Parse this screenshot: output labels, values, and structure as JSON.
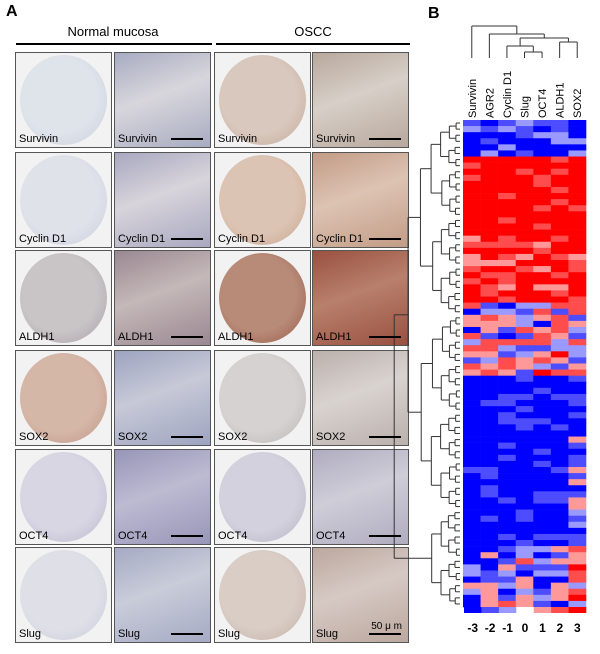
{
  "panel_a": {
    "letter": "A",
    "groups": [
      {
        "label": "Normal mucosa"
      },
      {
        "label": "OSCC"
      }
    ],
    "rows": [
      {
        "marker": "Survivin"
      },
      {
        "marker": "Cyclin D1"
      },
      {
        "marker": "ALDH1"
      },
      {
        "marker": "SOX2"
      },
      {
        "marker": "OCT4"
      },
      {
        "marker": "Slug"
      }
    ],
    "scale_bar": "50 μ m"
  },
  "panel_b": {
    "letter": "B",
    "columns": [
      "Survivin",
      "AGR2",
      "Cyclin D1",
      "Slug",
      "OCT4",
      "ALDH1",
      "SOX2"
    ],
    "color_scale": {
      "ticks": [
        "-3",
        "-2",
        "-1",
        "0",
        "1",
        "2",
        "3"
      ],
      "low_color": "#0000ff",
      "mid_color": "#ffffff",
      "high_color": "#ff0000"
    }
  }
}
